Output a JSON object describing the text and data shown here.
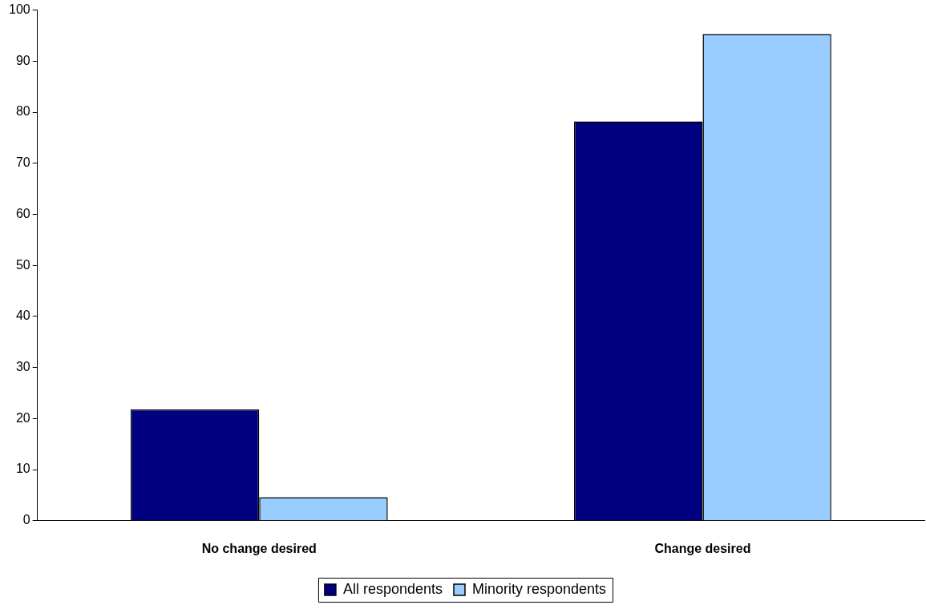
{
  "chart_data": {
    "type": "bar",
    "categories": [
      "No change desired",
      "Change desired"
    ],
    "series": [
      {
        "name": "All respondents",
        "color": "#000080",
        "values": [
          21.8,
          78.2
        ]
      },
      {
        "name": "Minority respondents",
        "color": "#99ccff",
        "values": [
          4.6,
          95.3
        ]
      }
    ],
    "ylim": [
      0,
      100
    ],
    "yticks": [
      0,
      10,
      20,
      30,
      40,
      50,
      60,
      70,
      80,
      90,
      100
    ],
    "grid": false,
    "legend": "bottom"
  }
}
